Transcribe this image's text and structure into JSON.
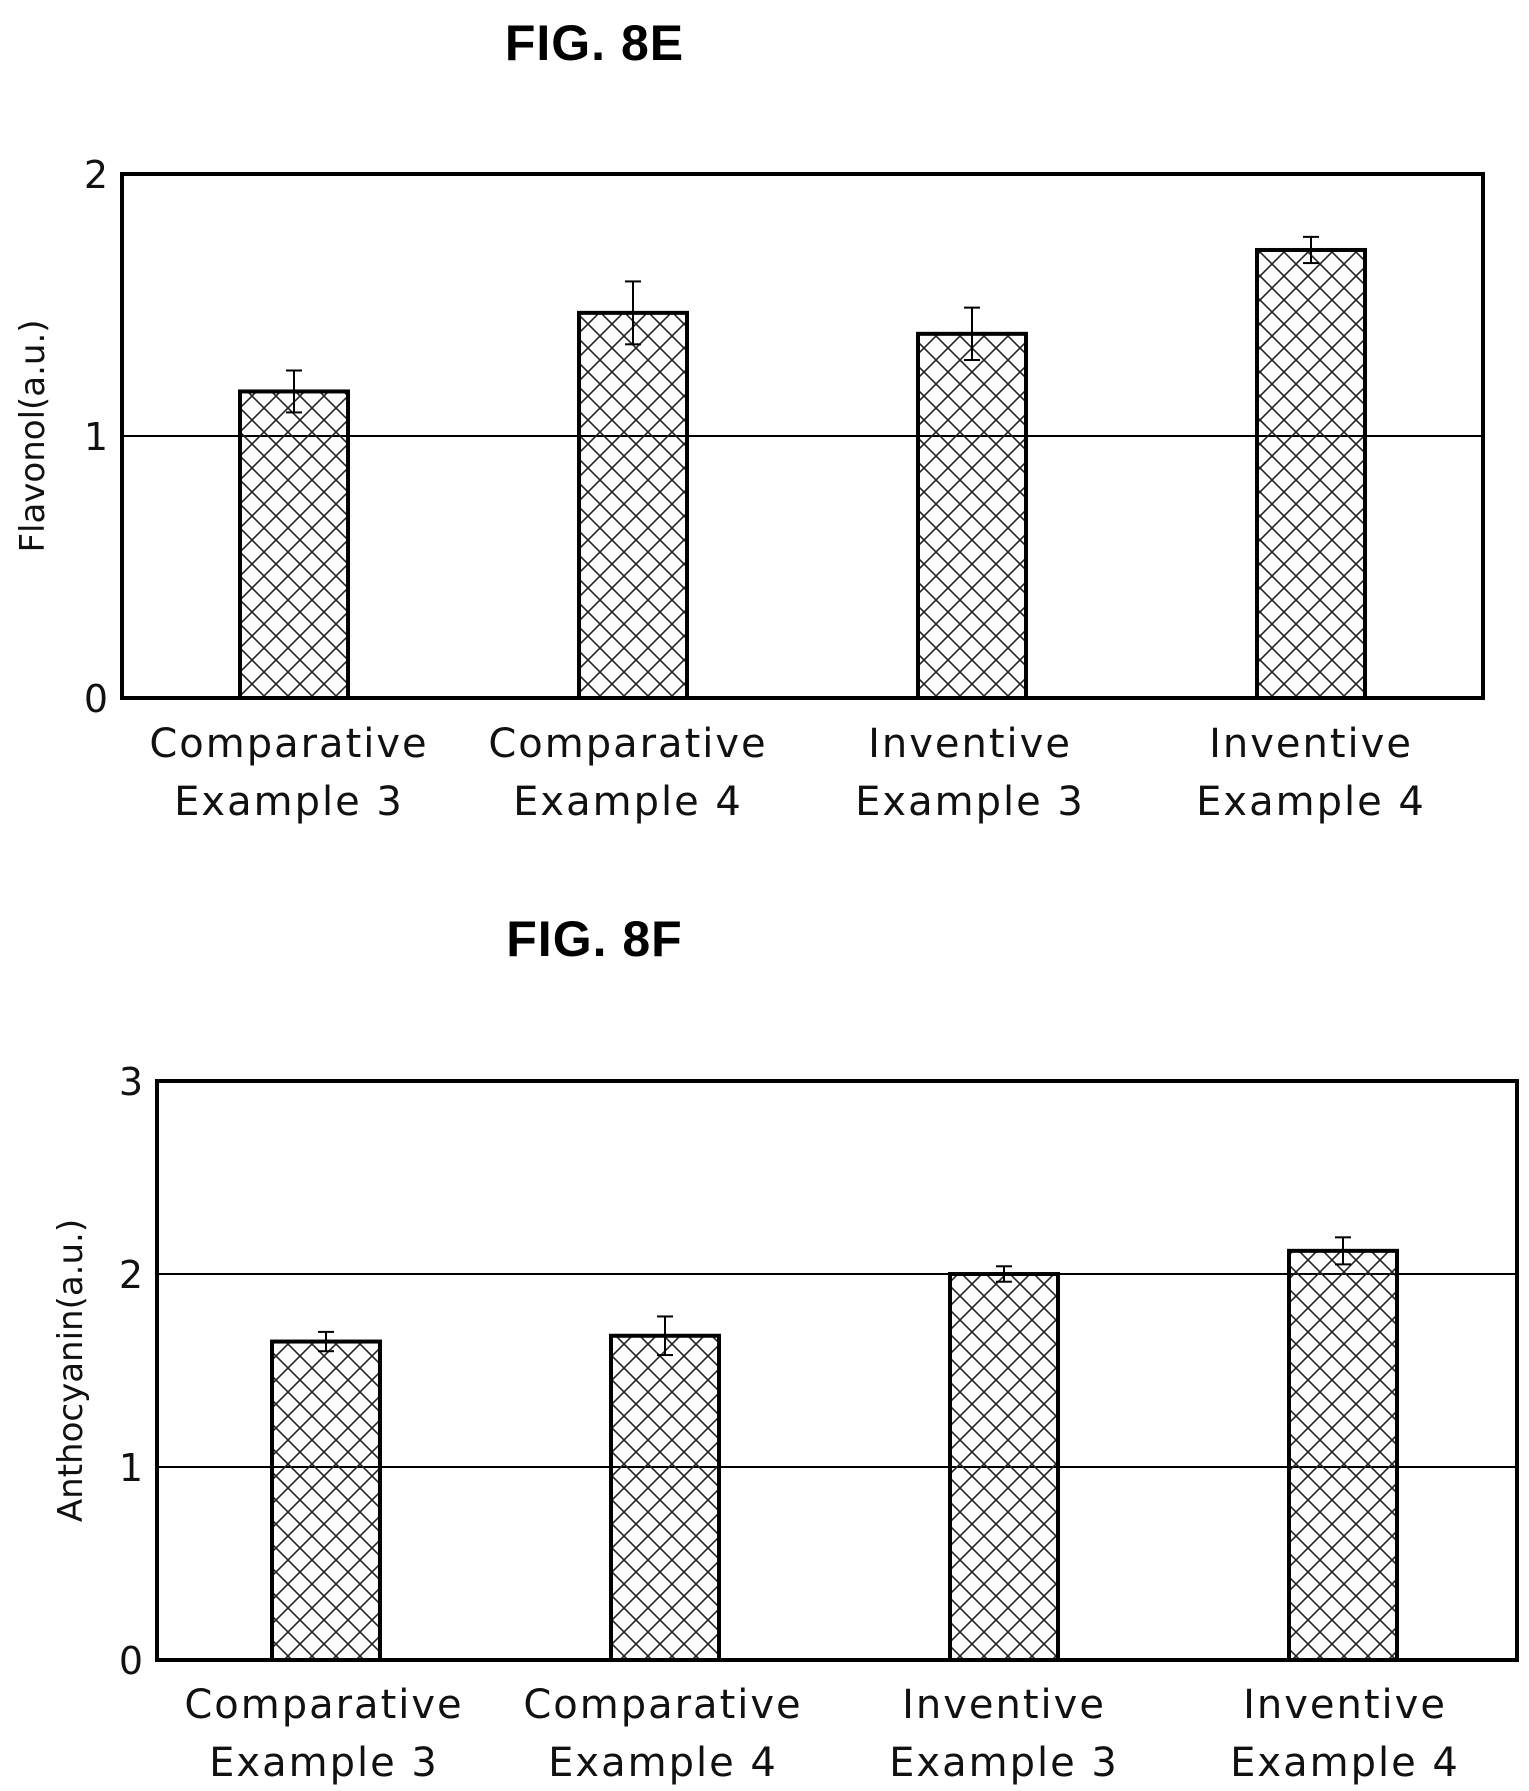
{
  "chart_data": [
    {
      "type": "bar",
      "title": "FIG. 8E",
      "ylabel": "Flavonol(a.u.)",
      "xlabel": "",
      "ylim": [
        0,
        2
      ],
      "yticks": [
        "0",
        "1",
        "2"
      ],
      "grid": "horizontal at y=1",
      "categories": [
        [
          "Comparative",
          "Example 3"
        ],
        [
          "Comparative",
          "Example 4"
        ],
        [
          "Inventive",
          "Example 3"
        ],
        [
          "Inventive",
          "Example 4"
        ]
      ],
      "values": [
        1.17,
        1.47,
        1.39,
        1.71
      ],
      "errors": [
        0.08,
        0.12,
        0.1,
        0.05
      ],
      "fill_pattern": "crosshatch"
    },
    {
      "type": "bar",
      "title": "FIG. 8F",
      "ylabel": "Anthocyanin(a.u.)",
      "xlabel": "",
      "ylim": [
        0,
        3
      ],
      "yticks": [
        "0",
        "1",
        "2",
        "3"
      ],
      "grid": "horizontal at y=1,2",
      "categories": [
        [
          "Comparative",
          "Example 3"
        ],
        [
          "Comparative",
          "Example 4"
        ],
        [
          "Inventive",
          "Example 3"
        ],
        [
          "Inventive",
          "Example 4"
        ]
      ],
      "values": [
        1.65,
        1.68,
        2.0,
        2.12
      ],
      "errors": [
        0.05,
        0.1,
        0.04,
        0.07
      ],
      "fill_pattern": "crosshatch"
    }
  ]
}
